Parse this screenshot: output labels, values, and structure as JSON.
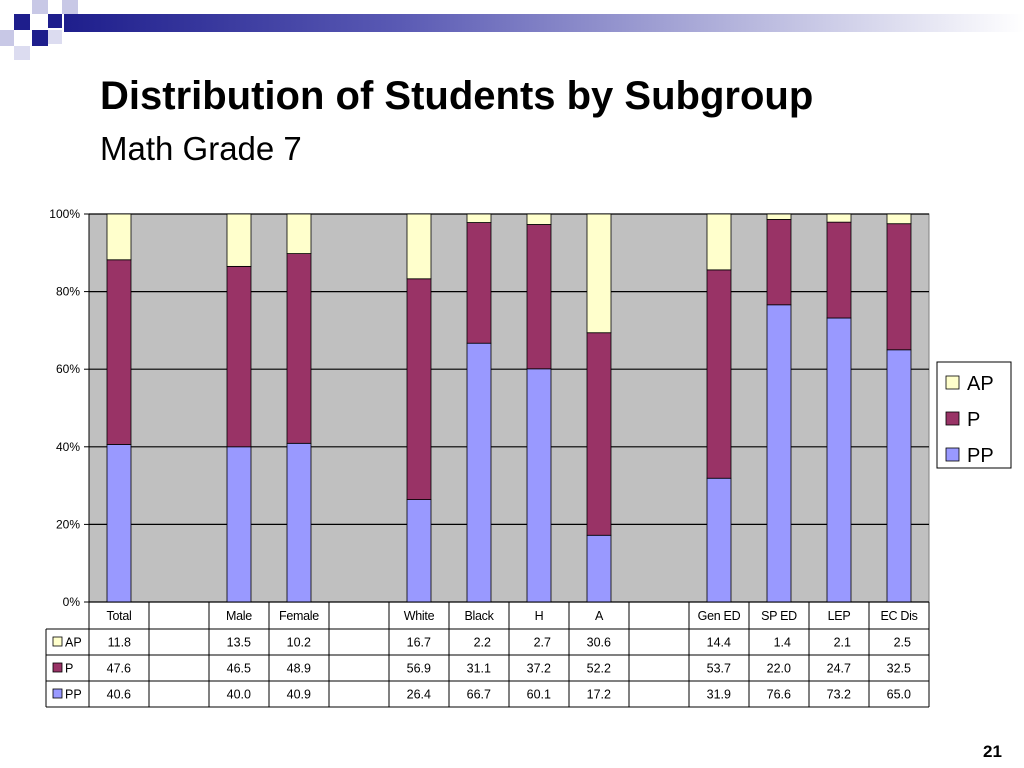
{
  "slide": {
    "title": "Distribution of Students by Subgroup",
    "subtitle": "Math Grade 7",
    "page_number": "21"
  },
  "colors": {
    "AP": "#ffffcc",
    "P": "#993366",
    "PP": "#9999ff",
    "plot_bg": "#c0c0c0",
    "deco_dark": "#1e1e8c",
    "deco_light": "#9696c8"
  },
  "chart_data": {
    "type": "bar",
    "stacked": "percent",
    "categories": [
      "Total",
      "",
      "Male",
      "Female",
      "",
      "White",
      "Black",
      "H",
      "A",
      "",
      "Gen ED",
      "SP ED",
      "LEP",
      "EC Dis"
    ],
    "series": [
      {
        "name": "AP",
        "values": [
          11.8,
          null,
          13.5,
          10.2,
          null,
          16.7,
          2.2,
          2.7,
          30.6,
          null,
          14.4,
          1.4,
          2.1,
          2.5
        ]
      },
      {
        "name": "P",
        "values": [
          47.6,
          null,
          46.5,
          48.9,
          null,
          56.9,
          31.1,
          37.2,
          52.2,
          null,
          53.7,
          22.0,
          24.7,
          32.5
        ]
      },
      {
        "name": "PP",
        "values": [
          40.6,
          null,
          40.0,
          40.9,
          null,
          26.4,
          66.7,
          60.1,
          17.2,
          null,
          31.9,
          76.6,
          73.2,
          65.0
        ]
      }
    ],
    "stack_order": [
      "PP",
      "P",
      "AP"
    ],
    "legend_order": [
      "AP",
      "P",
      "PP"
    ],
    "table_row_order": [
      "AP",
      "P",
      "PP"
    ],
    "ylim": [
      0,
      100
    ],
    "yticks": [
      0,
      20,
      40,
      60,
      80,
      100
    ],
    "ytick_labels": [
      "0%",
      "20%",
      "40%",
      "60%",
      "80%",
      "100%"
    ],
    "grid": true,
    "legend_position": "right",
    "data_table": true,
    "xlabel": "",
    "ylabel": ""
  }
}
